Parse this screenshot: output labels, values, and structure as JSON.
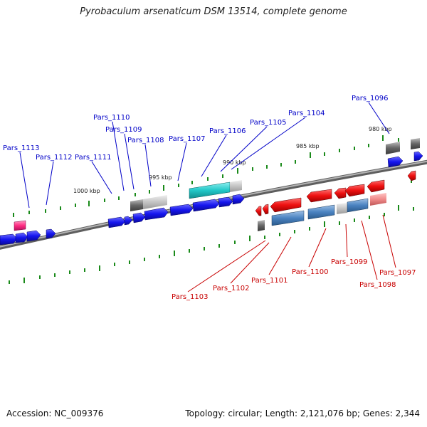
{
  "title": "Pyrobaculum arsenaticum DSM 13514, complete genome",
  "footer": {
    "accession": "Accession: NC_009376",
    "info": "Topology: circular; Length: 2,121,076 bp; Genes: 2,344"
  },
  "colors": {
    "plus_strand_gene": "#1a1aee",
    "minus_strand_gene": "#ee1a1a",
    "plus_label": "#0000c8",
    "minus_label": "#c80000",
    "rna_cyan": "#22c7c7",
    "steel_blue": "#4a82c0",
    "grey_gene": "#777777",
    "pink_gene": "#ff3c8c",
    "light_red_gene": "#f08a8a",
    "backbone": "#888888",
    "tick": "#1a8a1a"
  },
  "kbp_labels": [
    "1000 kbp",
    "995 kbp",
    "990 kbp",
    "985 kbp",
    "980 kbp"
  ],
  "plus_labels": [
    "Pars_1113",
    "Pars_1112",
    "Pars_1111",
    "Pars_1110",
    "Pars_1109",
    "Pars_1108",
    "Pars_1107",
    "Pars_1106",
    "Pars_1105",
    "Pars_1104",
    "Pars_1096"
  ],
  "minus_labels": [
    "Pars_1103",
    "Pars_1102",
    "Pars_1101",
    "Pars_1100",
    "Pars_1099",
    "Pars_1098",
    "Pars_1097"
  ]
}
